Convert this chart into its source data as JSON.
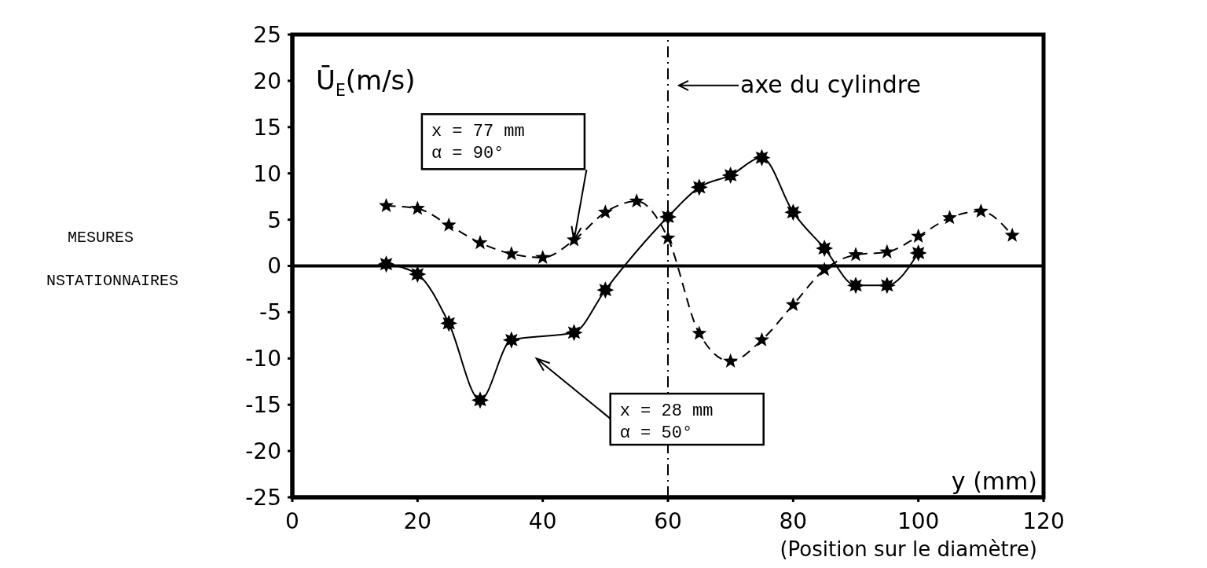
{
  "chart_data": {
    "type": "line",
    "ylabel": "Ū$_{E}$(m/s)",
    "xlabel": "y (mm)",
    "xlim": [
      0,
      120
    ],
    "xticks": [
      0,
      20,
      40,
      60,
      80,
      100,
      120
    ],
    "ylim": [
      -25,
      25
    ],
    "yticks": [
      -25,
      -20,
      -15,
      -10,
      -5,
      0,
      5,
      10,
      15,
      20,
      25
    ],
    "grid": false,
    "legend": false,
    "marker": "star",
    "series": [
      {
        "color": "#000000",
        "line_style": "dashed",
        "x": [
          15,
          20,
          25,
          30,
          35,
          40,
          45,
          50,
          55,
          60,
          65,
          70,
          75,
          80,
          85,
          90,
          95,
          100,
          105,
          110,
          115
        ],
        "values": [
          6.5,
          6.2,
          4.4,
          2.5,
          1.3,
          0.9,
          2.8,
          5.8,
          7.0,
          3.0,
          -7.3,
          -10.3,
          -8.0,
          -4.2,
          -0.4,
          1.2,
          1.5,
          3.2,
          5.2,
          5.9,
          3.3
        ]
      },
      {
        "color": "#000000",
        "line_style": "solid",
        "x": [
          15,
          20,
          25,
          30,
          35,
          45,
          50,
          60,
          65,
          70,
          75,
          80,
          85,
          90,
          95,
          100
        ],
        "values": [
          0.2,
          -0.9,
          -6.2,
          -14.5,
          -8.0,
          -7.2,
          -2.6,
          5.3,
          8.5,
          9.8,
          11.7,
          5.8,
          1.9,
          -2.1,
          -2.1,
          1.4
        ]
      }
    ],
    "ref_lines": [
      {
        "axis": "x",
        "value": 60,
        "label": "axe du cylindre",
        "line_style": "dashdot",
        "color": "#000000"
      },
      {
        "axis": "y",
        "value": 0,
        "color": "#000000",
        "line_style": "solid"
      }
    ],
    "annotations": [
      "x = 77 mm\nα = 90°",
      "x = 28 mm\nα = 50°",
      "MESURES",
      "NSTATIONNAIRES",
      "(Position sur le diamètre)"
    ]
  }
}
